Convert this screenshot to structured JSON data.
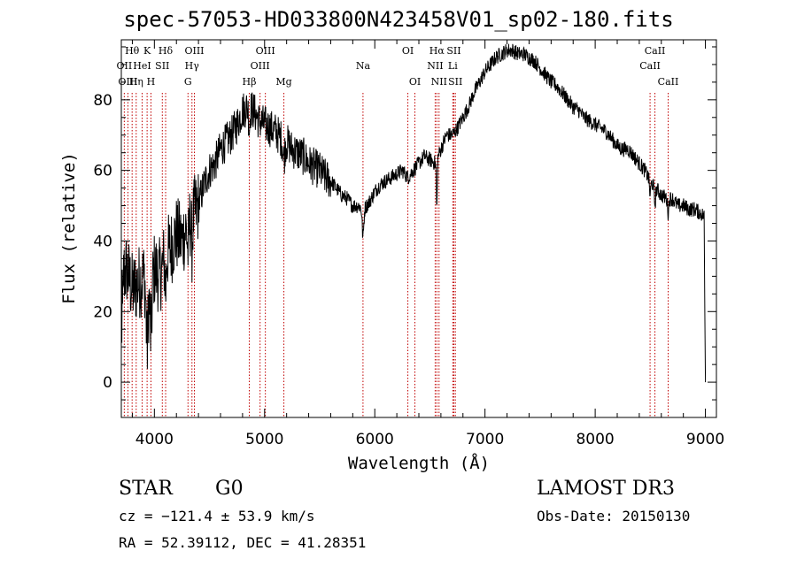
{
  "chart_data": {
    "type": "line",
    "title": "spec-57053-HD033800N423458V01_sp02-180.fits",
    "xlabel": "Wavelength (Å)",
    "ylabel": "Flux (relative)",
    "xlim": [
      3700,
      9100
    ],
    "ylim": [
      -10,
      97
    ],
    "xticks": [
      4000,
      5000,
      6000,
      7000,
      8000,
      9000
    ],
    "yticks": [
      0,
      20,
      40,
      60,
      80
    ],
    "grid": false,
    "series": [
      {
        "name": "spectrum",
        "x": [
          3700,
          3750,
          3800,
          3850,
          3900,
          3950,
          4000,
          4050,
          4100,
          4150,
          4200,
          4250,
          4300,
          4350,
          4400,
          4450,
          4500,
          4550,
          4600,
          4650,
          4700,
          4750,
          4800,
          4850,
          4900,
          4950,
          5000,
          5050,
          5100,
          5150,
          5200,
          5250,
          5300,
          5350,
          5400,
          5450,
          5500,
          5550,
          5600,
          5650,
          5700,
          5750,
          5800,
          5850,
          5900,
          5950,
          6000,
          6050,
          6100,
          6150,
          6200,
          6250,
          6300,
          6350,
          6400,
          6450,
          6500,
          6550,
          6600,
          6650,
          6700,
          6750,
          6800,
          6850,
          6900,
          6950,
          7000,
          7050,
          7100,
          7150,
          7200,
          7250,
          7300,
          7350,
          7400,
          7450,
          7500,
          7550,
          7600,
          7650,
          7700,
          7750,
          7800,
          7850,
          7900,
          7950,
          8000,
          8050,
          8100,
          8150,
          8200,
          8250,
          8300,
          8350,
          8400,
          8450,
          8500,
          8550,
          8600,
          8650,
          8700,
          8750,
          8800,
          8850,
          8900,
          8950,
          8990
        ],
        "y": [
          30,
          32,
          26,
          28,
          30,
          27,
          32,
          30,
          36,
          38,
          42,
          40,
          45,
          47,
          50,
          56,
          60,
          62,
          66,
          68,
          70,
          73,
          77,
          78,
          77,
          74,
          73,
          72,
          71,
          69,
          68,
          66,
          65,
          64,
          62,
          61,
          60,
          58,
          57,
          55,
          53,
          52,
          50,
          50,
          49,
          51,
          54,
          56,
          57,
          58,
          59,
          60,
          58,
          60,
          62,
          64,
          63,
          62,
          66,
          70,
          70,
          72,
          75,
          78,
          82,
          85,
          88,
          90,
          92,
          93,
          94,
          94,
          93,
          93,
          92,
          91,
          89,
          87,
          85,
          84,
          82,
          80,
          78,
          77,
          75,
          74,
          73,
          72,
          71,
          69,
          67,
          66,
          66,
          64,
          62,
          60,
          57,
          55,
          53,
          52,
          52,
          50,
          50,
          49,
          49,
          48,
          47
        ]
      }
    ],
    "line_labels": [
      {
        "label": "Hθ",
        "x": 3798,
        "row": 1
      },
      {
        "label": "OII",
        "x": 3727,
        "row": 2
      },
      {
        "label": "OIII",
        "x": 3760,
        "row": 3
      },
      {
        "label": "K",
        "x": 3934,
        "row": 1
      },
      {
        "label": "HeI",
        "x": 3889,
        "row": 2
      },
      {
        "label": "Hη",
        "x": 3835,
        "row": 3
      },
      {
        "label": "SII",
        "x": 4072,
        "row": 2
      },
      {
        "label": "H",
        "x": 3969,
        "row": 3
      },
      {
        "label": "Hδ",
        "x": 4102,
        "row": 1
      },
      {
        "label": "OIII",
        "x": 4363,
        "row": 1
      },
      {
        "label": "Hγ",
        "x": 4341,
        "row": 2
      },
      {
        "label": "G",
        "x": 4305,
        "row": 3
      },
      {
        "label": "OIII",
        "x": 5007,
        "row": 1
      },
      {
        "label": "OIII",
        "x": 4959,
        "row": 2
      },
      {
        "label": "Hβ",
        "x": 4861,
        "row": 3
      },
      {
        "label": "Mg",
        "x": 5175,
        "row": 3
      },
      {
        "label": "Na",
        "x": 5893,
        "row": 2
      },
      {
        "label": "OI",
        "x": 6300,
        "row": 1
      },
      {
        "label": "OI",
        "x": 6364,
        "row": 3
      },
      {
        "label": "Hα",
        "x": 6563,
        "row": 1
      },
      {
        "label": "NII",
        "x": 6548,
        "row": 2
      },
      {
        "label": "NII",
        "x": 6583,
        "row": 3
      },
      {
        "label": "SII",
        "x": 6717,
        "row": 1
      },
      {
        "label": "Li",
        "x": 6708,
        "row": 2
      },
      {
        "label": "SII",
        "x": 6731,
        "row": 3
      },
      {
        "label": "CaII",
        "x": 8542,
        "row": 1
      },
      {
        "label": "CaII",
        "x": 8498,
        "row": 2
      },
      {
        "label": "CaII",
        "x": 8662,
        "row": 3
      }
    ]
  },
  "info": {
    "object_type": "STAR",
    "subclass": "G0",
    "survey": "LAMOST DR3",
    "cz": "cz = −121.4 ± 53.9 km/s",
    "obs_date": "Obs-Date: 20150130",
    "coords": "RA =  52.39112, DEC =  41.28351"
  },
  "colors": {
    "line_marker": "#c00000",
    "spectrum": "#000000"
  }
}
